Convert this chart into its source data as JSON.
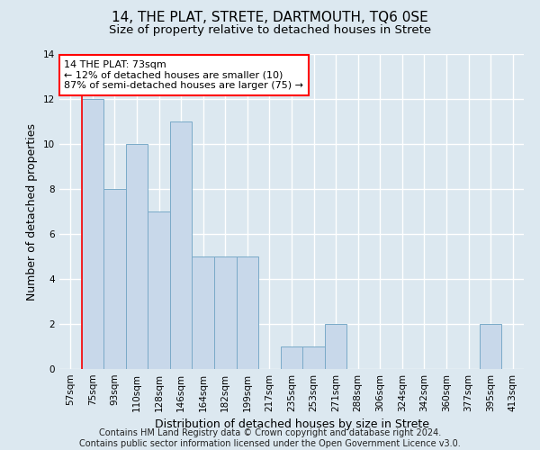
{
  "title": "14, THE PLAT, STRETE, DARTMOUTH, TQ6 0SE",
  "subtitle": "Size of property relative to detached houses in Strete",
  "xlabel": "Distribution of detached houses by size in Strete",
  "ylabel": "Number of detached properties",
  "bins": [
    "57sqm",
    "75sqm",
    "93sqm",
    "110sqm",
    "128sqm",
    "146sqm",
    "164sqm",
    "182sqm",
    "199sqm",
    "217sqm",
    "235sqm",
    "253sqm",
    "271sqm",
    "288sqm",
    "306sqm",
    "324sqm",
    "342sqm",
    "360sqm",
    "377sqm",
    "395sqm",
    "413sqm"
  ],
  "values": [
    0,
    12,
    8,
    10,
    7,
    11,
    5,
    5,
    5,
    0,
    1,
    1,
    2,
    0,
    0,
    0,
    0,
    0,
    0,
    2,
    0
  ],
  "bar_color": "#c8d8ea",
  "bar_edge_color": "#7aaac8",
  "red_line_index": 1,
  "annotation_line1": "14 THE PLAT: 73sqm",
  "annotation_line2": "← 12% of detached houses are smaller (10)",
  "annotation_line3": "87% of semi-detached houses are larger (75) →",
  "annotation_box_color": "white",
  "annotation_box_edge": "red",
  "ylim": [
    0,
    14
  ],
  "yticks": [
    0,
    2,
    4,
    6,
    8,
    10,
    12,
    14
  ],
  "footer1": "Contains HM Land Registry data © Crown copyright and database right 2024.",
  "footer2": "Contains public sector information licensed under the Open Government Licence v3.0.",
  "background_color": "#dce8f0",
  "grid_color": "#ffffff",
  "title_fontsize": 11,
  "subtitle_fontsize": 9.5,
  "axis_label_fontsize": 9,
  "tick_fontsize": 7.5,
  "footer_fontsize": 7,
  "annotation_fontsize": 8
}
